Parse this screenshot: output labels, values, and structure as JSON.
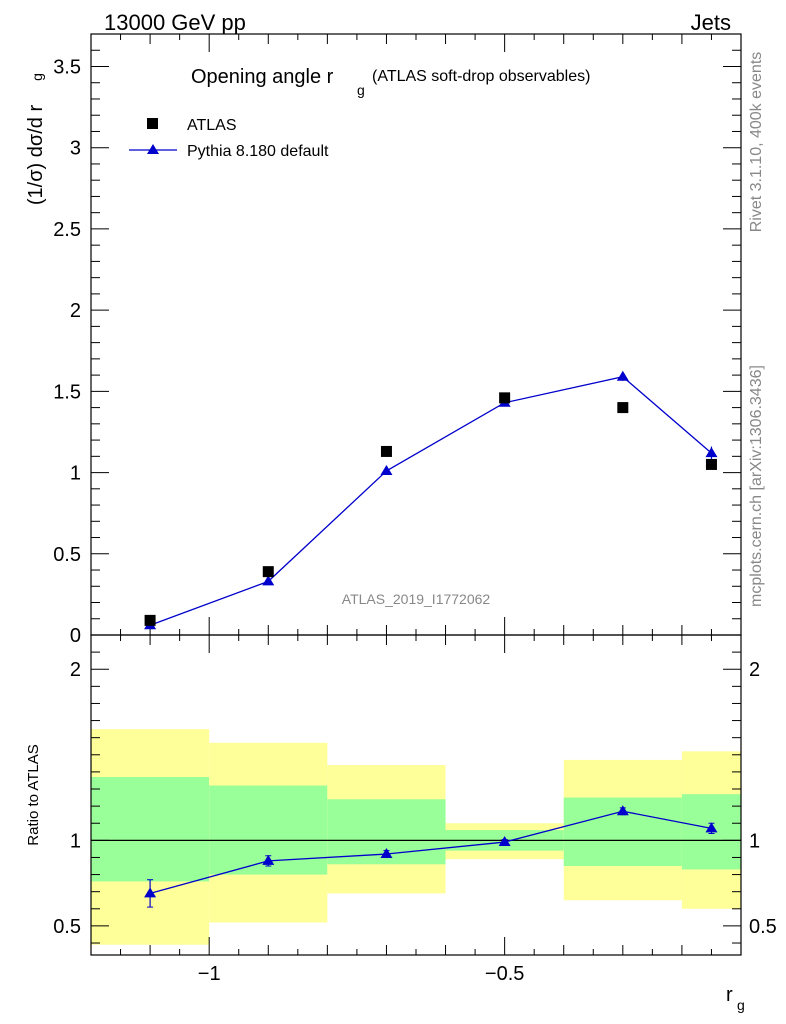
{
  "header": {
    "left": "13000 GeV pp",
    "right": "Jets"
  },
  "side": {
    "rivet": "Rivet 3.1.10,  400k events",
    "mcplots": "mcplots.cern.ch [arXiv:1306.3436]"
  },
  "chart_data": [
    {
      "type": "scatter",
      "panel": "main",
      "title": "Opening angle r",
      "title_sub": "g",
      "title_suffix": "(ATLAS soft-drop observables)",
      "ylabel": "(1/σ) dσ/d r",
      "ylabel_sub": "g",
      "analysis_tag": "ATLAS_2019_I1772062",
      "xlim": [
        -1.2,
        -0.1
      ],
      "ylim": [
        0,
        3.7
      ],
      "yticks": [
        0,
        0.5,
        1,
        1.5,
        2,
        2.5,
        3,
        3.5
      ],
      "ytick_labels": [
        "0",
        "0.5",
        "1",
        "1.5",
        "2",
        "2.5",
        "3",
        "3.5"
      ],
      "legend": {
        "position": "top-left",
        "entries": [
          "ATLAS",
          "Pythia 8.180 default"
        ]
      },
      "series": [
        {
          "name": "ATLAS",
          "marker": "square",
          "color": "#000000",
          "x": [
            -1.1,
            -0.9,
            -0.7,
            -0.5,
            -0.3,
            -0.15
          ],
          "y": [
            0.09,
            0.39,
            1.13,
            1.46,
            1.4,
            1.05
          ]
        },
        {
          "name": "Pythia 8.180 default",
          "marker": "triangle",
          "color": "#0000cc",
          "x": [
            -1.1,
            -0.9,
            -0.7,
            -0.5,
            -0.3,
            -0.15
          ],
          "y": [
            0.06,
            0.33,
            1.01,
            1.43,
            1.59,
            1.12
          ],
          "yerr": [
            0.005,
            0.01,
            0.01,
            0.015,
            0.025,
            0.04
          ]
        }
      ]
    },
    {
      "type": "scatter",
      "panel": "ratio",
      "ylabel": "Ratio to ATLAS",
      "xlabel": "r",
      "xlabel_sub": "g",
      "xlim": [
        -1.2,
        -0.1
      ],
      "ylim": [
        0.33,
        2.2
      ],
      "xticks": [
        -1,
        -0.5
      ],
      "xtick_labels": [
        "−1",
        "−0.5"
      ],
      "yticks": [
        0.5,
        1,
        2
      ],
      "ytick_labels": [
        "0.5",
        "1",
        "2"
      ],
      "bins": [
        [
          -1.2,
          -1.0
        ],
        [
          -1.0,
          -0.8
        ],
        [
          -0.8,
          -0.6
        ],
        [
          -0.6,
          -0.4
        ],
        [
          -0.4,
          -0.2
        ],
        [
          -0.2,
          -0.1
        ]
      ],
      "band_outer": [
        [
          0.39,
          1.65
        ],
        [
          0.52,
          1.57
        ],
        [
          0.69,
          1.44
        ],
        [
          0.89,
          1.1
        ],
        [
          0.65,
          1.47
        ],
        [
          0.6,
          1.52
        ]
      ],
      "band_inner": [
        [
          0.76,
          1.37
        ],
        [
          0.8,
          1.32
        ],
        [
          0.86,
          1.24
        ],
        [
          0.94,
          1.06
        ],
        [
          0.85,
          1.25
        ],
        [
          0.83,
          1.27
        ]
      ],
      "band_colors": {
        "outer": "#ffff99",
        "inner": "#99ff99"
      },
      "series": [
        {
          "name": "Pythia 8.180 default",
          "color": "#0000cc",
          "x": [
            -1.1,
            -0.9,
            -0.7,
            -0.5,
            -0.3,
            -0.15
          ],
          "y": [
            0.69,
            0.88,
            0.92,
            0.99,
            1.17,
            1.07
          ],
          "yerr": [
            0.08,
            0.03,
            0.02,
            0.015,
            0.02,
            0.03
          ]
        }
      ]
    }
  ]
}
